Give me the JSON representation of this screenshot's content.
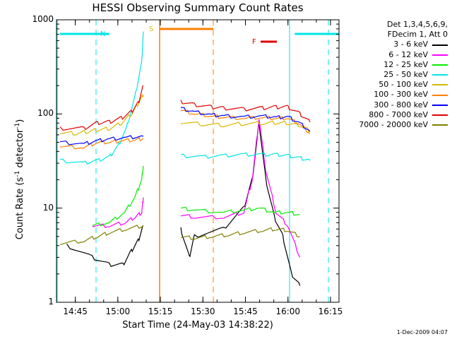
{
  "chart_data": {
    "type": "line",
    "title": "HESSI Observing Summary Count Rates",
    "xlabel": "Start Time (24-May-03 14:38:22)",
    "ylabel_text": "Count Rate (s",
    "ylabel_sup1": "-1",
    "ylabel_mid": " detector",
    "ylabel_sup2": "-1",
    "ylabel_end": ")",
    "yscale": "log",
    "ylim": [
      1,
      1000
    ],
    "xlim_minutes": [
      "14:38:22",
      "16:18"
    ],
    "x_tick_labels": [
      "14:45",
      "15:00",
      "15:15",
      "15:30",
      "15:45",
      "16:00",
      "16:15"
    ],
    "y_tick_labels": [
      "1",
      "10",
      "100",
      "1000"
    ],
    "legend_header": [
      "Det 1,3,4,5,6,9,",
      "FDecim 1, Att 0"
    ],
    "series": [
      {
        "name": "3 - 6 keV",
        "color": "#000000",
        "points": [
          [
            14.7,
            4.0
          ],
          [
            14.85,
            3.0
          ],
          [
            14.95,
            2.5
          ],
          [
            15.03,
            2.5
          ],
          [
            15.08,
            3.5
          ],
          [
            15.12,
            4.5
          ],
          [
            15.15,
            6.5
          ],
          [
            15.37,
            6.0
          ],
          [
            15.42,
            3.0
          ],
          [
            15.45,
            5.0
          ],
          [
            15.62,
            6.0
          ],
          [
            15.74,
            10.0
          ],
          [
            15.79,
            20.0
          ],
          [
            15.83,
            80.0
          ],
          [
            15.87,
            20.0
          ],
          [
            15.92,
            8.0
          ],
          [
            15.97,
            5.0
          ],
          [
            16.02,
            2.0
          ],
          [
            16.07,
            1.5
          ]
        ]
      },
      {
        "name": "6 - 12 keV",
        "color": "#ff00ff",
        "points": [
          [
            14.85,
            6.5
          ],
          [
            14.95,
            6.5
          ],
          [
            15.04,
            7.0
          ],
          [
            15.1,
            8.0
          ],
          [
            15.14,
            9.0
          ],
          [
            15.15,
            13.0
          ],
          [
            15.37,
            8.5
          ],
          [
            15.45,
            8.0
          ],
          [
            15.62,
            8.0
          ],
          [
            15.74,
            9.0
          ],
          [
            15.79,
            20.0
          ],
          [
            15.83,
            90.0
          ],
          [
            15.87,
            25.0
          ],
          [
            15.93,
            9.0
          ],
          [
            16.0,
            6.5
          ],
          [
            16.07,
            3.0
          ]
        ]
      },
      {
        "name": "12 - 25 keV",
        "color": "#00ee00",
        "points": [
          [
            14.85,
            6.5
          ],
          [
            14.95,
            7.0
          ],
          [
            15.04,
            9.0
          ],
          [
            15.1,
            13.0
          ],
          [
            15.14,
            20.0
          ],
          [
            15.15,
            28.0
          ],
          [
            15.37,
            10.0
          ],
          [
            15.45,
            9.5
          ],
          [
            15.62,
            9.0
          ],
          [
            15.74,
            9.5
          ],
          [
            15.83,
            10.0
          ],
          [
            15.92,
            9.0
          ],
          [
            16.0,
            9.0
          ],
          [
            16.07,
            8.5
          ]
        ]
      },
      {
        "name": "25 - 50 keV",
        "color": "#00e5e5",
        "points": [
          [
            14.66,
            32
          ],
          [
            14.8,
            30
          ],
          [
            14.88,
            32
          ],
          [
            14.95,
            35
          ],
          [
            15.0,
            45
          ],
          [
            15.05,
            70
          ],
          [
            15.1,
            150
          ],
          [
            15.14,
            350
          ],
          [
            15.15,
            750
          ],
          [
            15.37,
            36
          ],
          [
            15.5,
            35
          ],
          [
            15.62,
            36
          ],
          [
            15.74,
            37
          ],
          [
            15.85,
            37
          ],
          [
            15.93,
            37
          ],
          [
            16.0,
            36
          ],
          [
            16.07,
            34
          ],
          [
            16.13,
            32
          ]
        ]
      },
      {
        "name": "50 - 100 keV",
        "color": "#d9b800",
        "points": [
          [
            14.66,
            64
          ],
          [
            14.75,
            62
          ],
          [
            14.82,
            65
          ],
          [
            14.88,
            68
          ],
          [
            14.95,
            70
          ],
          [
            15.02,
            80
          ],
          [
            15.08,
            100
          ],
          [
            15.12,
            130
          ],
          [
            15.15,
            160
          ],
          [
            15.37,
            82
          ],
          [
            15.5,
            78
          ],
          [
            15.62,
            76
          ],
          [
            15.74,
            79
          ],
          [
            15.85,
            80
          ],
          [
            15.93,
            81
          ],
          [
            16.0,
            80
          ],
          [
            16.07,
            76
          ],
          [
            16.13,
            66
          ]
        ]
      },
      {
        "name": "100 - 300 keV",
        "color": "#ff8000",
        "points": [
          [
            14.66,
            45
          ],
          [
            14.8,
            44
          ],
          [
            14.88,
            50
          ],
          [
            14.95,
            50
          ],
          [
            15.02,
            52
          ],
          [
            15.1,
            53
          ],
          [
            15.15,
            55
          ],
          [
            15.37,
            110
          ],
          [
            15.45,
            100
          ],
          [
            15.55,
            95
          ],
          [
            15.62,
            92
          ],
          [
            15.74,
            90
          ],
          [
            15.85,
            92
          ],
          [
            15.93,
            90
          ],
          [
            16.0,
            90
          ],
          [
            16.07,
            78
          ],
          [
            16.13,
            62
          ]
        ]
      },
      {
        "name": "300 - 800 keV",
        "color": "#0000ff",
        "points": [
          [
            14.66,
            50
          ],
          [
            14.8,
            48
          ],
          [
            14.88,
            52
          ],
          [
            14.95,
            54
          ],
          [
            15.05,
            56
          ],
          [
            15.15,
            58
          ],
          [
            15.37,
            115
          ],
          [
            15.45,
            105
          ],
          [
            15.55,
            98
          ],
          [
            15.62,
            95
          ],
          [
            15.74,
            93
          ],
          [
            15.85,
            95
          ],
          [
            15.93,
            92
          ],
          [
            16.0,
            93
          ],
          [
            16.07,
            80
          ],
          [
            16.13,
            65
          ]
        ]
      },
      {
        "name": "800 - 7000 keV",
        "color": "#e00000",
        "points": [
          [
            14.66,
            70
          ],
          [
            14.8,
            70
          ],
          [
            14.88,
            80
          ],
          [
            14.95,
            82
          ],
          [
            15.02,
            90
          ],
          [
            15.08,
            105
          ],
          [
            15.12,
            130
          ],
          [
            15.15,
            200
          ],
          [
            15.37,
            135
          ],
          [
            15.45,
            125
          ],
          [
            15.55,
            118
          ],
          [
            15.62,
            115
          ],
          [
            15.74,
            112
          ],
          [
            15.85,
            115
          ],
          [
            15.93,
            118
          ],
          [
            16.0,
            118
          ],
          [
            16.07,
            100
          ],
          [
            16.13,
            82
          ]
        ]
      },
      {
        "name": "7000 - 20000 keV",
        "color": "#808000",
        "points": [
          [
            14.66,
            4.2
          ],
          [
            14.8,
            4.5
          ],
          [
            14.88,
            5.0
          ],
          [
            14.95,
            5.5
          ],
          [
            15.05,
            6.0
          ],
          [
            15.15,
            6.5
          ],
          [
            15.37,
            5.0
          ],
          [
            15.45,
            4.8
          ],
          [
            15.55,
            5.0
          ],
          [
            15.65,
            5.2
          ],
          [
            15.74,
            5.5
          ],
          [
            15.85,
            5.8
          ],
          [
            15.93,
            6.0
          ],
          [
            16.0,
            5.8
          ],
          [
            16.07,
            5.0
          ]
        ]
      }
    ],
    "annotations": {
      "night_label": "N",
      "saa_label": "S",
      "flare_label": "F",
      "night_color": "#00e5e5",
      "saa_color": "#ff8000",
      "flare_color": "#e00000"
    },
    "timestamp": "1-Dec-2009 04:07"
  }
}
